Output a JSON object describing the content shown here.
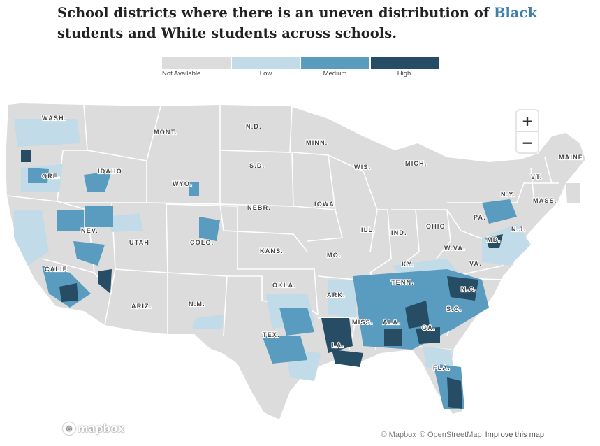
{
  "header": {
    "title_before": "School districts where there is an uneven distribution of ",
    "title_highlight": "Black",
    "title_after": " students and White students across schools."
  },
  "legend": {
    "items": [
      {
        "label": "Not Available",
        "color": "#dcdcdc"
      },
      {
        "label": "Low",
        "color": "#c2dbe8"
      },
      {
        "label": "Medium",
        "color": "#5a9cbf"
      },
      {
        "label": "High",
        "color": "#264d63"
      }
    ]
  },
  "map": {
    "land_color": "#dcdcdc",
    "border_color": "#ffffff",
    "state_labels": [
      "WASH.",
      "MONT.",
      "N.D.",
      "MINN.",
      "MAINE",
      "ORE.",
      "IDAHO",
      "S.D.",
      "WIS.",
      "MICH.",
      "VT.",
      "N.Y.",
      "MASS.",
      "WYO.",
      "IOWA",
      "NEBR.",
      "PA.",
      "N.J.",
      "NEV.",
      "OHIO",
      "ILL.",
      "IND.",
      "MD.",
      "UTAH",
      "COLO.",
      "W.VA.",
      "VA.",
      "KANS.",
      "MO.",
      "KY.",
      "CALIF.",
      "TENN.",
      "N.C.",
      "OKLA.",
      "ARK.",
      "S.C.",
      "ARIZ.",
      "N.M.",
      "GA.",
      "MISS.",
      "ALA.",
      "TEX.",
      "LA.",
      "FLA."
    ]
  },
  "controls": {
    "zoom_in": "+",
    "zoom_out": "−"
  },
  "footer": {
    "logo_text": "mapbox",
    "attribution_mapbox": "© Mapbox",
    "attribution_osm": "© OpenStreetMap",
    "improve": "Improve this map"
  }
}
